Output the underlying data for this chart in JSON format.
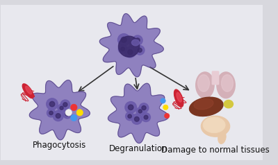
{
  "background_color": "#e8e8ec",
  "cell_color_main": "#8878bb",
  "cell_color_light": "#9988cc",
  "cell_color_dark": "#5a4a8a",
  "cell_spot_color": "#6a5aaa",
  "cell_spot_dark": "#3a2a6a",
  "bacteria_body": "#cc2233",
  "bacteria_highlight": "#ee5566",
  "bacteria_flagella": "#cc2233",
  "arrow_color": "#333333",
  "label_phagocytosis": "Phagocytosis",
  "label_degranulation": "Degranulation",
  "label_damage": "Damage to normal tissues",
  "label_fontsize": 8.5,
  "granule_red": "#ee3333",
  "granule_yellow": "#ffdd00",
  "granule_blue": "#4499ee",
  "granule_white": "#eeeeee",
  "lung_color": "#d4b0b8",
  "lung_highlight": "#e8ccd4",
  "liver_color": "#7a3520",
  "gallbladder_color": "#d4c840",
  "intestine_color": "#e8c8a8",
  "intestine_outline": "#c8a888"
}
